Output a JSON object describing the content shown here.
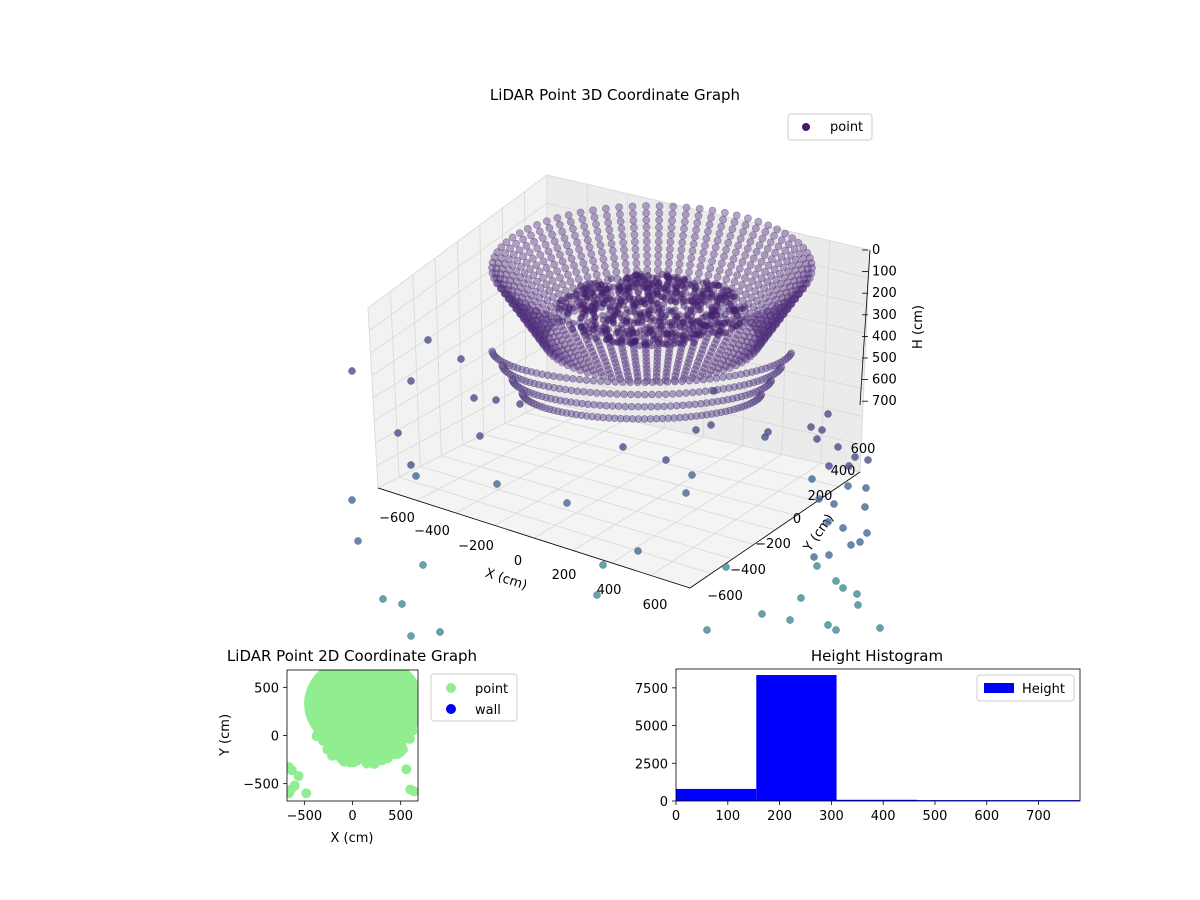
{
  "chart_data": [
    {
      "type": "scatter3d",
      "title": "LiDAR Point 3D Coordinate Graph",
      "xlabel": "X (cm)",
      "ylabel": "Y (cm)",
      "zlabel": "H (cm)",
      "xticks": [
        "−600",
        "−400",
        "−200",
        "0",
        "200",
        "400",
        "600"
      ],
      "yticks": [
        "−600",
        "−400",
        "−200",
        "0",
        "200",
        "400",
        "600"
      ],
      "zticks": [
        "0",
        "100",
        "200",
        "300",
        "400",
        "500",
        "600",
        "700"
      ],
      "xlim": [
        -650,
        650
      ],
      "ylim": [
        -650,
        650
      ],
      "zlim": [
        750,
        0
      ],
      "legend": [
        {
          "name": "point",
          "color": "#481a6c"
        }
      ],
      "legend_position": "upper-right",
      "grid": true,
      "colors": {
        "inner": "#440154",
        "outer": "#31688e",
        "far": "#35b779"
      }
    },
    {
      "type": "scatter",
      "title": "LiDAR Point 2D Coordinate Graph",
      "xlabel": "X (cm)",
      "ylabel": "Y (cm)",
      "xticks": [
        "−500",
        "0",
        "500"
      ],
      "yticks": [
        "500",
        "0",
        "−500"
      ],
      "xlim": [
        -680,
        680
      ],
      "ylim": [
        -680,
        680
      ],
      "legend": [
        {
          "name": "point",
          "color": "#90ee90"
        },
        {
          "name": "wall",
          "color": "#0000ff"
        }
      ],
      "legend_position": "outside-right"
    },
    {
      "type": "bar",
      "title": "Height Histogram",
      "xticks": [
        "0",
        "100",
        "200",
        "300",
        "400",
        "500",
        "600",
        "700"
      ],
      "yticks": [
        "0",
        "2500",
        "5000",
        "7500"
      ],
      "xlim": [
        0,
        780
      ],
      "ylim": [
        0,
        8750
      ],
      "bins": [
        {
          "x0": 0,
          "x1": 155,
          "count": 800
        },
        {
          "x0": 155,
          "x1": 310,
          "count": 8350
        },
        {
          "x0": 310,
          "x1": 465,
          "count": 80
        },
        {
          "x0": 465,
          "x1": 620,
          "count": 60
        },
        {
          "x0": 620,
          "x1": 780,
          "count": 60
        }
      ],
      "legend": [
        {
          "name": "Height",
          "color": "#0000ff"
        }
      ],
      "legend_position": "upper-right",
      "color": "#0000ff"
    }
  ]
}
